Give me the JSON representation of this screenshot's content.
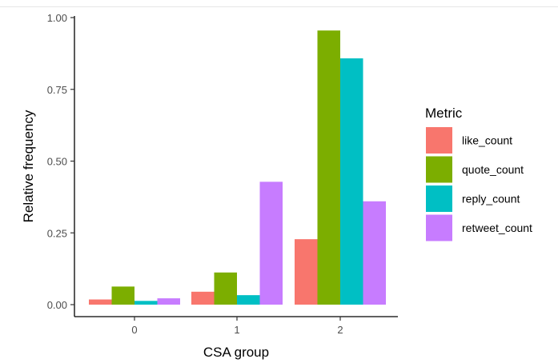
{
  "chart_data": {
    "type": "bar",
    "xlabel": "CSA group",
    "ylabel": "Relative frequency",
    "categories": [
      "0",
      "1",
      "2"
    ],
    "ylim": [
      0,
      1.0
    ],
    "yticks": [
      0.0,
      0.25,
      0.5,
      0.75,
      1.0
    ],
    "ytick_labels": [
      "0.00",
      "0.25",
      "0.50",
      "0.75",
      "1.00"
    ],
    "legend": {
      "title": "Metric",
      "position": "right"
    },
    "grid": false,
    "series": [
      {
        "name": "like_count",
        "color": "#F8766D",
        "values": [
          0.018,
          0.045,
          0.228
        ]
      },
      {
        "name": "quote_count",
        "color": "#7CAE00",
        "values": [
          0.063,
          0.112,
          0.955
        ]
      },
      {
        "name": "reply_count",
        "color": "#00BFC4",
        "values": [
          0.013,
          0.033,
          0.858
        ]
      },
      {
        "name": "retweet_count",
        "color": "#C77CFF",
        "values": [
          0.022,
          0.428,
          0.36
        ]
      }
    ]
  }
}
